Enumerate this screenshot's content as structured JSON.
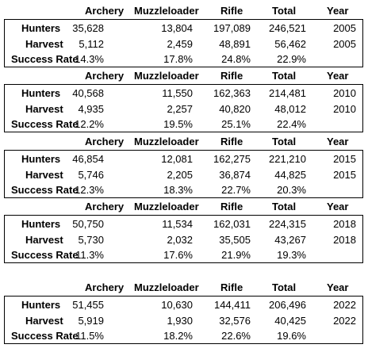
{
  "columns": [
    "Archery",
    "Muzzleloader",
    "Rifle",
    "Total",
    "Year"
  ],
  "row_labels": [
    "Hunters",
    "Harvest",
    "Success Rate"
  ],
  "blocks": [
    {
      "hunters": [
        "35,628",
        "13,804",
        "197,089",
        "246,521",
        "2005"
      ],
      "harvest": [
        "5,112",
        "2,459",
        "48,891",
        "56,462",
        "2005"
      ],
      "success": [
        "14.3%",
        "17.8%",
        "24.8%",
        "22.9%",
        ""
      ]
    },
    {
      "hunters": [
        "40,568",
        "11,550",
        "162,363",
        "214,481",
        "2010"
      ],
      "harvest": [
        "4,935",
        "2,257",
        "40,820",
        "48,012",
        "2010"
      ],
      "success": [
        "12.2%",
        "19.5%",
        "25.1%",
        "22.4%",
        ""
      ]
    },
    {
      "hunters": [
        "46,854",
        "12,081",
        "162,275",
        "221,210",
        "2015"
      ],
      "harvest": [
        "5,746",
        "2,205",
        "36,874",
        "44,825",
        "2015"
      ],
      "success": [
        "12.3%",
        "18.3%",
        "22.7%",
        "20.3%",
        ""
      ]
    },
    {
      "hunters": [
        "50,750",
        "11,534",
        "162,031",
        "224,315",
        "2018"
      ],
      "harvest": [
        "5,730",
        "2,032",
        "35,505",
        "43,267",
        "2018"
      ],
      "success": [
        "11.3%",
        "17.6%",
        "21.9%",
        "19.3%",
        ""
      ]
    },
    {
      "hunters": [
        "51,455",
        "10,630",
        "144,411",
        "206,496",
        "2022"
      ],
      "harvest": [
        "5,919",
        "1,930",
        "32,576",
        "40,425",
        "2022"
      ],
      "success": [
        "11.5%",
        "18.2%",
        "22.6%",
        "19.6%",
        ""
      ]
    }
  ]
}
